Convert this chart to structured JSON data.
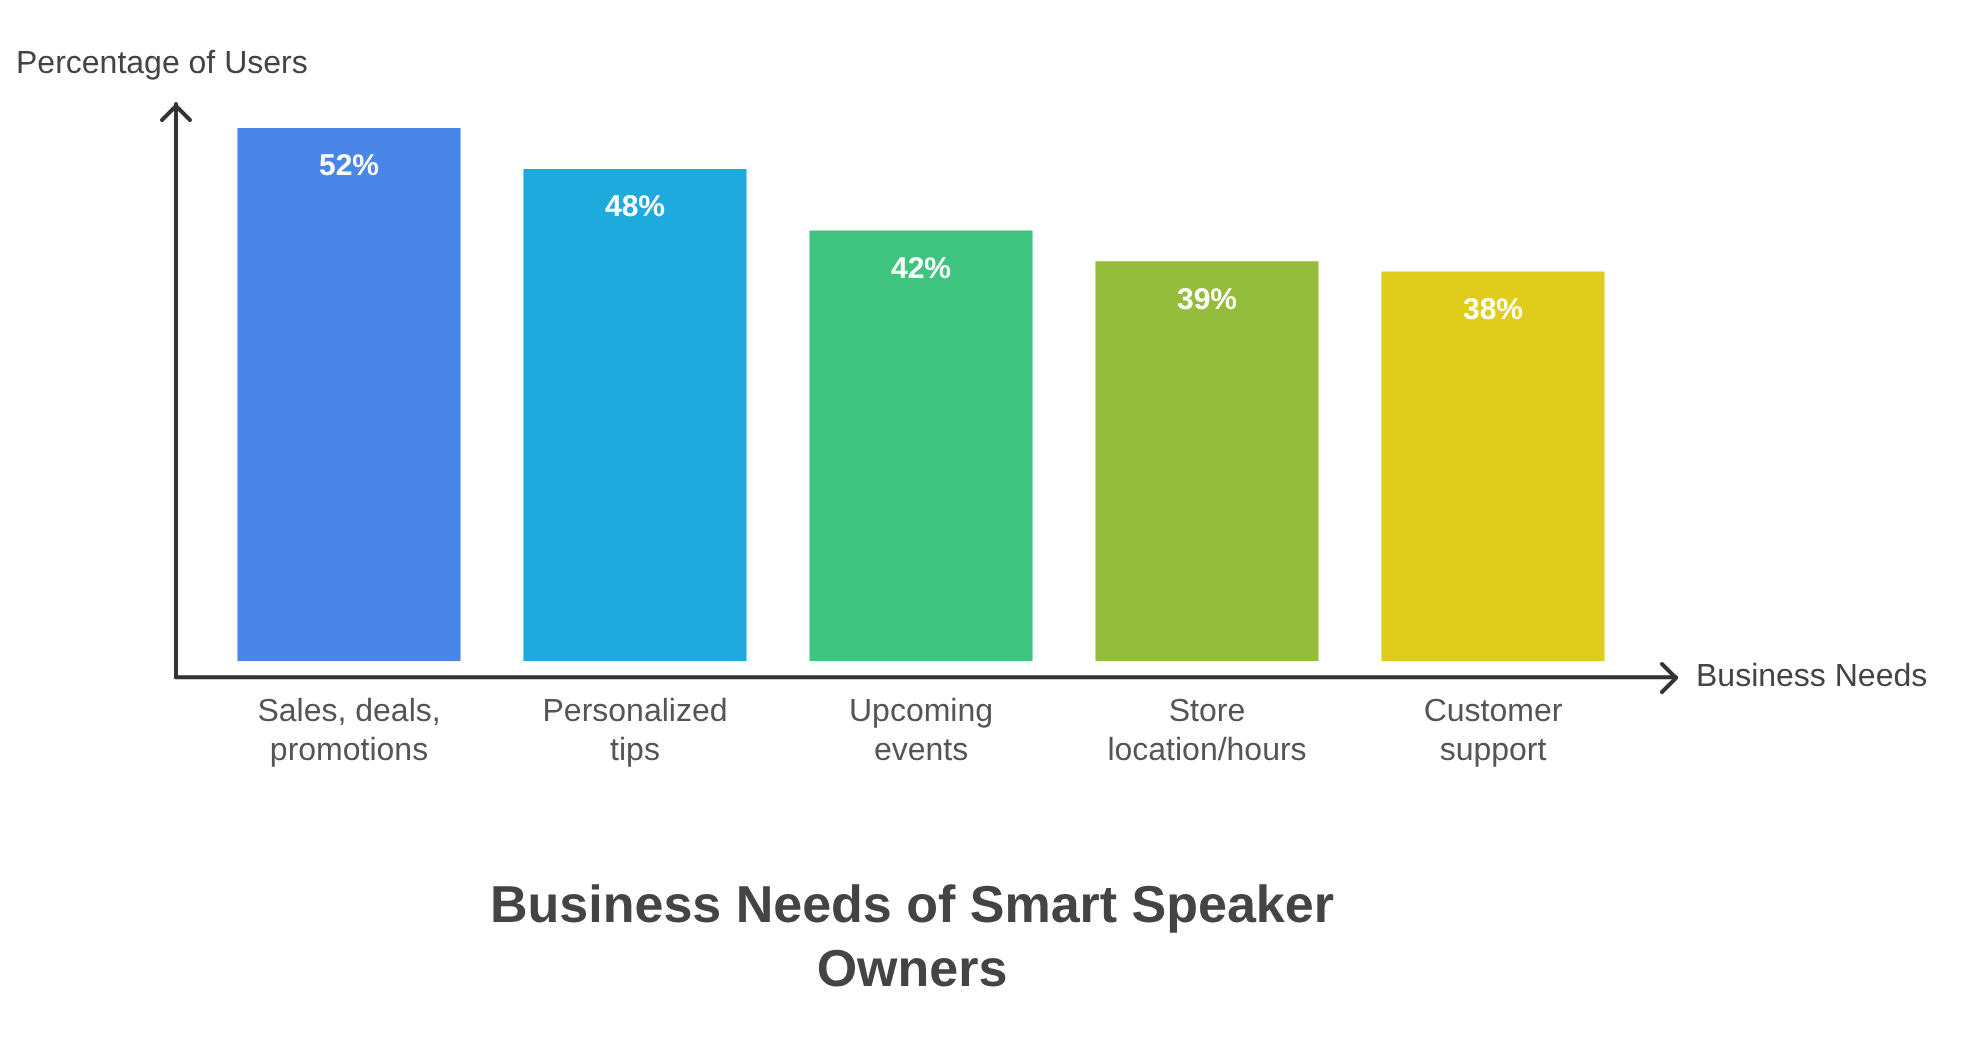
{
  "chart_data": {
    "type": "bar",
    "title": "Business Needs of Smart Speaker Owners",
    "xlabel": "Business Needs",
    "ylabel": "Percentage of Users",
    "categories": [
      "Sales, deals, promotions",
      "Personalized tips",
      "Upcoming events",
      "Store location/hours",
      "Customer support"
    ],
    "values": [
      52,
      48,
      42,
      39,
      38
    ],
    "colors": [
      "#4a86e8",
      "#1eaadc",
      "#3ec47e",
      "#95bd3c",
      "#e0cc1a"
    ],
    "value_labels": [
      "52%",
      "48%",
      "42%",
      "39%",
      "38%"
    ],
    "tick_labels": "x",
    "grid": false,
    "legend": false
  }
}
